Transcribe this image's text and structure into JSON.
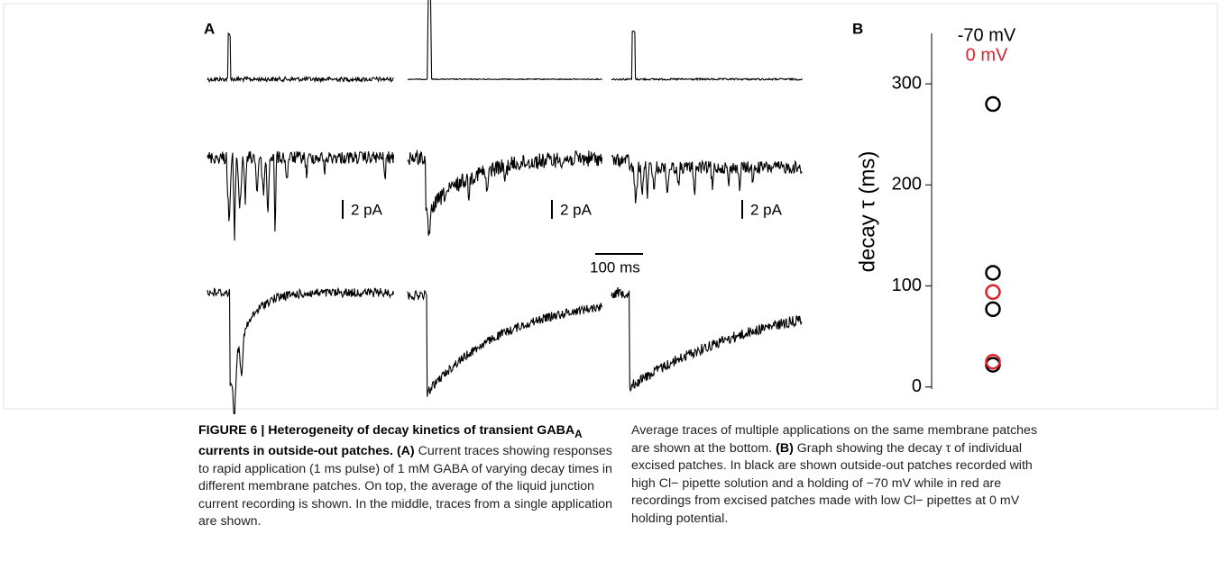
{
  "panel_a": {
    "label": "A",
    "scale_labels": [
      "2 pA",
      "2 pA",
      "2 pA"
    ],
    "time_scale": "100 ms"
  },
  "chart_data": {
    "type": "scatter",
    "label": "B",
    "y_label": "decay τ (ms)",
    "ylim": [
      -2,
      350
    ],
    "yticks": [
      0,
      100,
      200,
      300
    ],
    "series": [
      {
        "name": "-70 mV",
        "color": "#000000",
        "values": [
          280,
          113,
          77,
          22
        ]
      },
      {
        "name": "0 mV",
        "color": "#e0202a",
        "values": [
          94,
          25
        ]
      }
    ]
  },
  "caption": {
    "title_start": "FIGURE 6 | Heterogeneity of decay kinetics of transient GABA",
    "title_sub": "A",
    "title_end": "currents in outside-out patches.",
    "a_label": "(A)",
    "a_text": "Current traces showing responses to rapid application (1 ms pulse) of 1 mM GABA of varying decay times in different membrane patches. On top, the average of the liquid junction current recording is shown. In the middle, traces from a single application are shown.",
    "a_text_cont": "Average traces of multiple applications on the same membrane patches are shown at the bottom.",
    "b_label": "(B)",
    "b_text": "Graph showing the decay τ of individual excised patches. In black are shown outside-out patches recorded with high Cl− pipette solution and a holding of −70 mV while in red are recordings from excised patches made with low Cl− pipettes at 0 mV holding potential."
  }
}
